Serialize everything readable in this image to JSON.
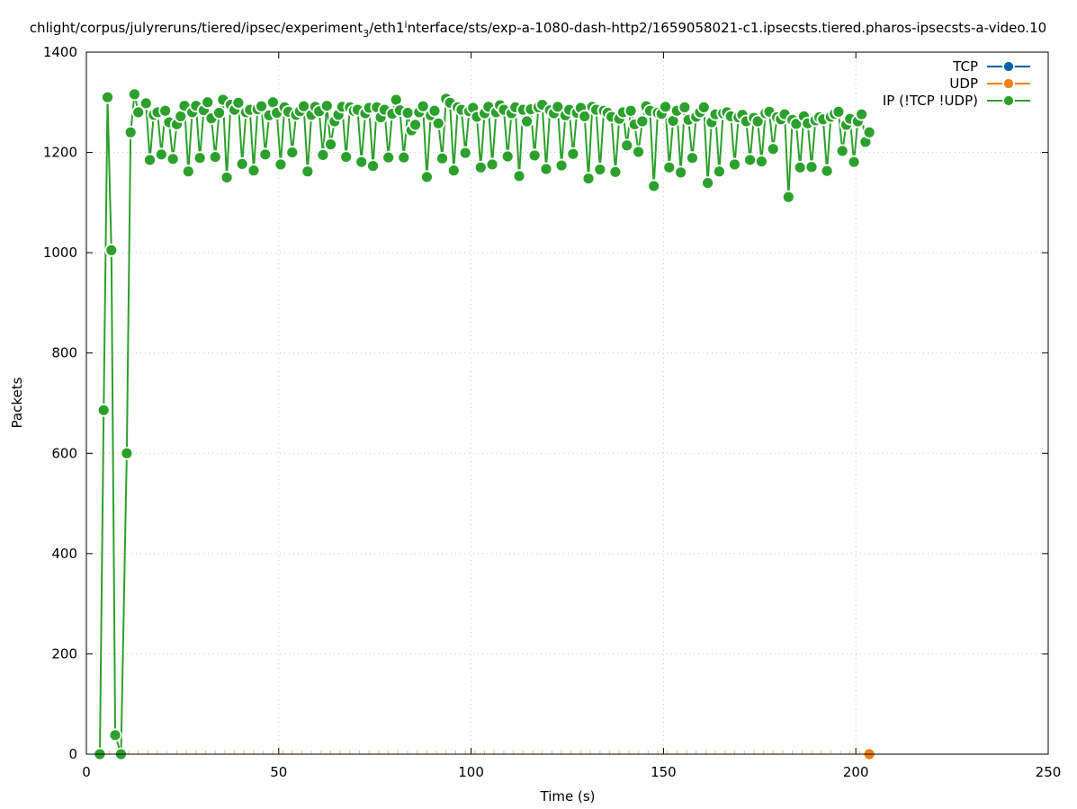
{
  "chart_data": {
    "type": "line",
    "title_parts": {
      "a": "chlight/corpus/julyreruns/tiered/ipsec/experiment",
      "a_sub": "3",
      "b": "/eth1",
      "b_sub": "i",
      "c": "nterface/sts/exp-a-1080-dash-http2/1659058021-c1.ipsecsts.tiered.pharos-ipsecsts-a-video.10"
    },
    "xlabel": "Time (s)",
    "ylabel": "Packets",
    "xlim": [
      0,
      250
    ],
    "ylim": [
      0,
      1400
    ],
    "xticks": [
      "0",
      "50",
      "100",
      "150",
      "200",
      "250"
    ],
    "yticks": [
      "0",
      "200",
      "400",
      "600",
      "800",
      "1000",
      "1200",
      "1400"
    ],
    "grid": true,
    "legend_position": "top-right",
    "series": [
      {
        "name": "TCP",
        "color": "#0060ad",
        "x": [],
        "y": []
      },
      {
        "name": "UDP",
        "color": "#f07f10",
        "x": [
          203.5
        ],
        "y": [
          0
        ]
      },
      {
        "name": "IP (!TCP  !UDP)",
        "color": "#2ca02c",
        "x": [
          3.5,
          4.5,
          5.5,
          6.5,
          7.5,
          9,
          10.5,
          11.5,
          12.5,
          13.5,
          15.5,
          16.5,
          17.5,
          18.5,
          19.5,
          20.5,
          21.5,
          22.5,
          23.5,
          24.5,
          25.5,
          26.5,
          27.5,
          28.5,
          29.5,
          30.5,
          31.5,
          32.5,
          33.5,
          34.5,
          35.5,
          36.5,
          37.5,
          38.5,
          39.5,
          40.5,
          41.5,
          42.5,
          43.5,
          44.5,
          45.5,
          46.5,
          47.5,
          48.5,
          49.5,
          50.5,
          51.5,
          52.5,
          53.5,
          54.5,
          55.5,
          56.5,
          57.5,
          58.5,
          59.5,
          60.5,
          61.5,
          62.5,
          63.5,
          64.5,
          65.5,
          66.5,
          67.5,
          68.5,
          69.5,
          70.5,
          71.5,
          72.5,
          73.5,
          74.5,
          75.5,
          76.5,
          77.5,
          78.5,
          79.5,
          80.5,
          81.5,
          82.5,
          83.5,
          84.5,
          85.5,
          86.5,
          87.5,
          88.5,
          89.5,
          90.5,
          91.5,
          92.5,
          93.5,
          94.5,
          95.5,
          96.5,
          97.5,
          98.5,
          99.5,
          100.5,
          101.5,
          102.5,
          103.5,
          104.5,
          105.5,
          106.5,
          107.5,
          108.5,
          109.5,
          110.5,
          111.5,
          112.5,
          113.5,
          114.5,
          115.5,
          116.5,
          117.5,
          118.5,
          119.5,
          120.5,
          121.5,
          122.5,
          123.5,
          124.5,
          125.5,
          126.5,
          127.5,
          128.5,
          129.5,
          130.5,
          131.5,
          132.5,
          133.5,
          134.5,
          135.5,
          136.5,
          137.5,
          138.5,
          139.5,
          140.5,
          141.5,
          142.5,
          143.5,
          144.5,
          145.5,
          146.5,
          147.5,
          148.5,
          149.5,
          150.5,
          151.5,
          152.5,
          153.5,
          154.5,
          155.5,
          156.5,
          157.5,
          158.5,
          159.5,
          160.5,
          161.5,
          162.5,
          163.5,
          164.5,
          165.5,
          166.5,
          167.5,
          168.5,
          169.5,
          170.5,
          171.5,
          172.5,
          173.5,
          174.5,
          175.5,
          176.5,
          177.5,
          178.5,
          179.5,
          180.5,
          181.5,
          182.5,
          183.5,
          184.5,
          185.5,
          186.5,
          187.5,
          188.5,
          189.5,
          190.5,
          191.5,
          192.5,
          193.5,
          194.5,
          195.5,
          196.5,
          197.5,
          198.5,
          199.5,
          200.5,
          201.5,
          202.5,
          203.5
        ],
        "y": [
          0,
          686,
          1310,
          1005,
          38,
          0,
          600,
          1240,
          1316,
          1280,
          1298,
          1185,
          1275,
          1280,
          1196,
          1283,
          1260,
          1187,
          1256,
          1272,
          1293,
          1162,
          1280,
          1293,
          1189,
          1284,
          1300,
          1268,
          1191,
          1279,
          1305,
          1150,
          1295,
          1285,
          1299,
          1177,
          1280,
          1285,
          1164,
          1286,
          1292,
          1196,
          1274,
          1300,
          1279,
          1176,
          1290,
          1281,
          1200,
          1275,
          1282,
          1292,
          1162,
          1275,
          1291,
          1282,
          1195,
          1293,
          1216,
          1262,
          1275,
          1291,
          1191,
          1290,
          1283,
          1285,
          1181,
          1278,
          1289,
          1173,
          1290,
          1270,
          1285,
          1190,
          1277,
          1305,
          1284,
          1190,
          1279,
          1244,
          1255,
          1280,
          1292,
          1151,
          1274,
          1283,
          1258,
          1188,
          1307,
          1299,
          1164,
          1290,
          1285,
          1199,
          1282,
          1289,
          1271,
          1170,
          1278,
          1291,
          1176,
          1280,
          1294,
          1285,
          1192,
          1278,
          1290,
          1153,
          1285,
          1262,
          1286,
          1194,
          1290,
          1295,
          1167,
          1284,
          1278,
          1291,
          1174,
          1274,
          1285,
          1197,
          1279,
          1289,
          1272,
          1148,
          1291,
          1285,
          1166,
          1283,
          1279,
          1271,
          1161,
          1267,
          1280,
          1214,
          1283,
          1256,
          1201,
          1262,
          1292,
          1283,
          1133,
          1279,
          1277,
          1291,
          1170,
          1263,
          1283,
          1160,
          1290,
          1265,
          1189,
          1271,
          1280,
          1290,
          1139,
          1260,
          1276,
          1162,
          1278,
          1280,
          1272,
          1176,
          1270,
          1275,
          1262,
          1185,
          1269,
          1262,
          1182,
          1278,
          1281,
          1207,
          1270,
          1266,
          1276,
          1111,
          1265,
          1257,
          1170,
          1272,
          1258,
          1171,
          1264,
          1270,
          1266,
          1163,
          1271,
          1277,
          1281,
          1203,
          1255,
          1267,
          1181,
          1262,
          1276,
          1221,
          1240
        ]
      }
    ]
  }
}
